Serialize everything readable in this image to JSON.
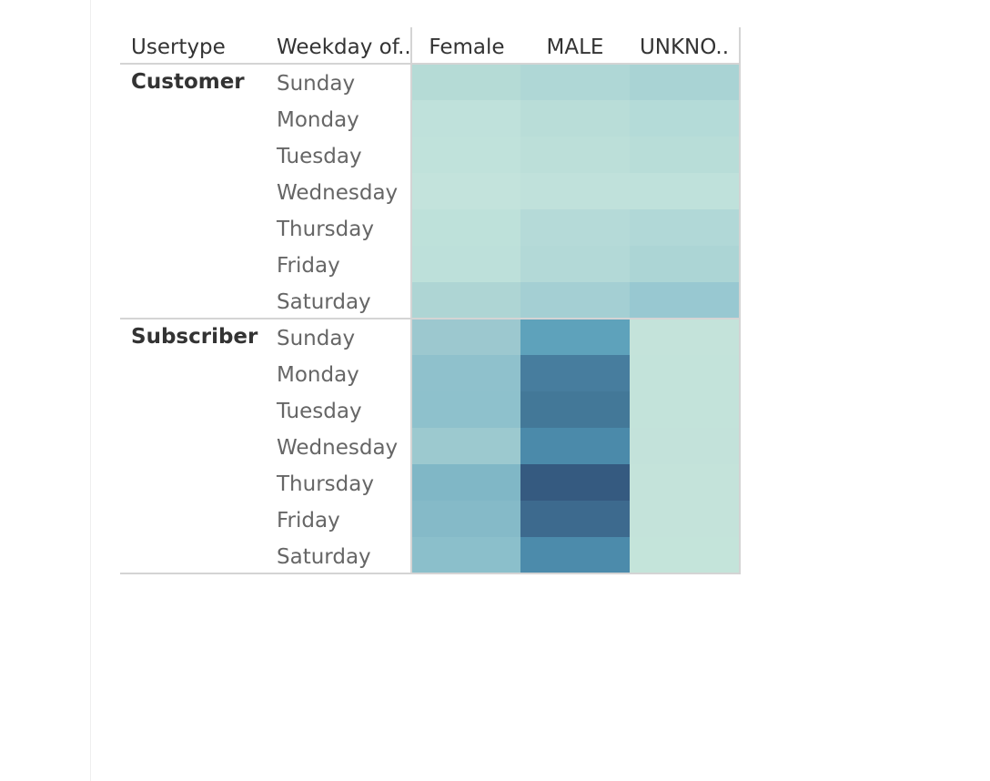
{
  "chart_data": {
    "type": "heatmap",
    "row_headers": [
      "Usertype",
      "Weekday of.."
    ],
    "column_headers": [
      "Female",
      "MALE",
      "UNKNO.."
    ],
    "groups": [
      {
        "usertype": "Customer",
        "weekdays": [
          "Sunday",
          "Monday",
          "Tuesday",
          "Wednesday",
          "Thursday",
          "Friday",
          "Saturday"
        ],
        "cells": [
          [
            "#b5dbd6",
            "#afd7d6",
            "#a9d3d4"
          ],
          [
            "#bfe1db",
            "#b9ddd8",
            "#b4dbd8"
          ],
          [
            "#c0e2db",
            "#bcdfd9",
            "#b8ddd8"
          ],
          [
            "#c3e3dc",
            "#c0e1db",
            "#bfe1db"
          ],
          [
            "#bee1da",
            "#b5dad8",
            "#b1d8d7"
          ],
          [
            "#bde0da",
            "#b3d9d7",
            "#acd5d5"
          ],
          [
            "#aed5d4",
            "#a4cfd3",
            "#98c8d1"
          ]
        ]
      },
      {
        "usertype": "Subscriber",
        "weekdays": [
          "Sunday",
          "Monday",
          "Tuesday",
          "Wednesday",
          "Thursday",
          "Friday",
          "Saturday"
        ],
        "cells": [
          [
            "#9cc8cf",
            "#5ea2bb",
            "#c4e3da"
          ],
          [
            "#8fc1cc",
            "#477d9e",
            "#c3e3da"
          ],
          [
            "#8ec1cc",
            "#437898",
            "#c3e3da"
          ],
          [
            "#9cc9cf",
            "#4b8aaa",
            "#c3e2da"
          ],
          [
            "#80b7c6",
            "#355a80",
            "#c4e3da"
          ],
          [
            "#85bac8",
            "#3d6a8e",
            "#c4e3da"
          ],
          [
            "#8bbfcb",
            "#4c8bab",
            "#c4e4da"
          ]
        ]
      }
    ]
  }
}
